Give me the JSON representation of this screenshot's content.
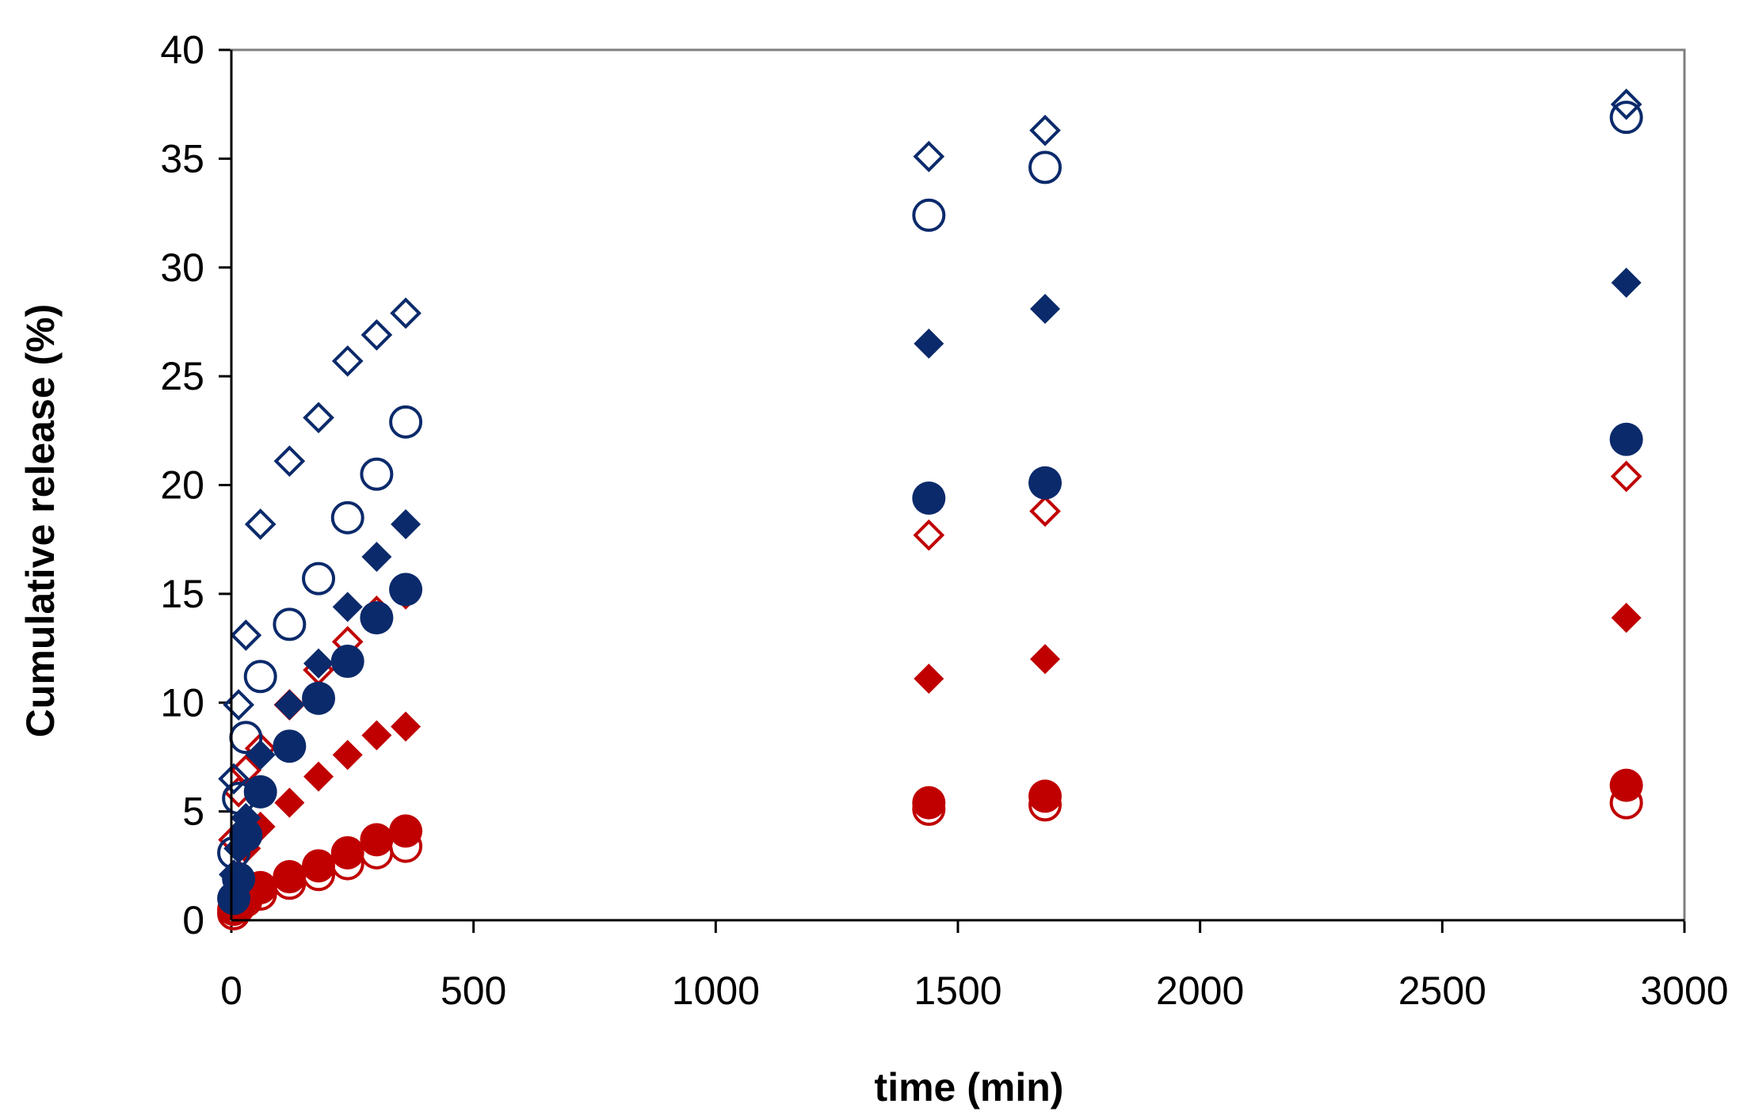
{
  "chart_data": {
    "type": "scatter",
    "title": "",
    "xlabel": "time (min)",
    "ylabel": "Cumulative release (%)",
    "xlim": [
      0,
      3000
    ],
    "ylim": [
      0,
      40
    ],
    "xticks": [
      0,
      500,
      1000,
      1500,
      2000,
      2500,
      3000
    ],
    "yticks": [
      0,
      5,
      10,
      15,
      20,
      25,
      30,
      35,
      40
    ],
    "grid": false,
    "legend": "none",
    "series": [
      {
        "name": "navy open diamond",
        "color": "#0b2a6b",
        "marker": "diamond",
        "filled": false,
        "x": [
          5,
          15,
          30,
          60,
          120,
          180,
          240,
          300,
          360,
          1440,
          1680,
          2880
        ],
        "y": [
          6.5,
          9.9,
          13.1,
          18.2,
          21.1,
          23.1,
          25.7,
          26.9,
          27.9,
          35.1,
          36.3,
          37.5
        ]
      },
      {
        "name": "navy open circle",
        "color": "#0b2a6b",
        "marker": "circle",
        "filled": false,
        "x": [
          5,
          15,
          30,
          60,
          120,
          180,
          240,
          300,
          360,
          1440,
          1680,
          2880
        ],
        "y": [
          3.1,
          5.6,
          8.4,
          11.2,
          13.6,
          15.7,
          18.5,
          20.5,
          22.9,
          32.4,
          34.6,
          36.9
        ]
      },
      {
        "name": "navy filled diamond",
        "color": "#0b2a6b",
        "marker": "diamond",
        "filled": true,
        "x": [
          5,
          15,
          30,
          60,
          120,
          180,
          240,
          300,
          360,
          1440,
          1680,
          2880
        ],
        "y": [
          2.1,
          3.3,
          4.7,
          7.6,
          9.9,
          11.8,
          14.4,
          16.7,
          18.2,
          26.5,
          28.1,
          29.3
        ]
      },
      {
        "name": "navy filled circle",
        "color": "#0b2a6b",
        "marker": "circle",
        "filled": true,
        "x": [
          5,
          15,
          30,
          60,
          120,
          180,
          240,
          300,
          360,
          1440,
          1680,
          2880
        ],
        "y": [
          1.0,
          1.9,
          3.9,
          5.9,
          8.0,
          10.2,
          11.9,
          13.9,
          15.2,
          19.4,
          20.1,
          22.1
        ]
      },
      {
        "name": "red open diamond",
        "color": "#c00000",
        "marker": "diamond",
        "filled": false,
        "x": [
          5,
          15,
          30,
          60,
          120,
          180,
          240,
          300,
          360,
          1440,
          1680,
          2880
        ],
        "y": [
          3.7,
          5.9,
          6.9,
          7.9,
          9.9,
          11.5,
          12.8,
          14.2,
          15.0,
          17.7,
          18.8,
          20.4
        ]
      },
      {
        "name": "red filled diamond",
        "color": "#c00000",
        "marker": "diamond",
        "filled": true,
        "x": [
          5,
          15,
          30,
          60,
          120,
          180,
          240,
          300,
          360,
          1440,
          1680,
          2880
        ],
        "y": [
          1.1,
          2.1,
          3.3,
          4.3,
          5.4,
          6.6,
          7.6,
          8.5,
          8.9,
          11.1,
          12.0,
          13.9
        ]
      },
      {
        "name": "red open circle",
        "color": "#c00000",
        "marker": "circle",
        "filled": false,
        "x": [
          5,
          15,
          30,
          60,
          120,
          180,
          240,
          300,
          360,
          1440,
          1680,
          2880
        ],
        "y": [
          0.3,
          0.6,
          0.9,
          1.2,
          1.7,
          2.1,
          2.6,
          3.1,
          3.4,
          5.1,
          5.3,
          5.4
        ]
      },
      {
        "name": "red filled circle",
        "color": "#c00000",
        "marker": "circle",
        "filled": true,
        "x": [
          5,
          15,
          30,
          60,
          120,
          180,
          240,
          300,
          360,
          1440,
          1680,
          2880
        ],
        "y": [
          0.5,
          0.8,
          1.1,
          1.5,
          2.0,
          2.5,
          3.1,
          3.7,
          4.1,
          5.4,
          5.7,
          6.2
        ]
      }
    ]
  }
}
